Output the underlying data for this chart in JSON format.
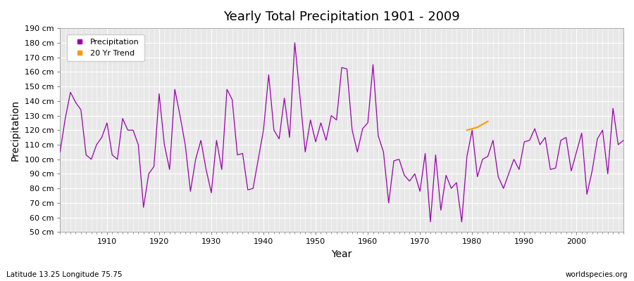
{
  "title": "Yearly Total Precipitation 1901 - 2009",
  "xlabel": "Year",
  "ylabel": "Precipitation",
  "subtitle": "Latitude 13.25 Longitude 75.75",
  "watermark": "worldspecies.org",
  "ylim": [
    50,
    190
  ],
  "xlim": [
    1901,
    2009
  ],
  "yticks": [
    50,
    60,
    70,
    80,
    90,
    100,
    110,
    120,
    130,
    140,
    150,
    160,
    170,
    180,
    190
  ],
  "ytick_labels": [
    "50 cm",
    "60 cm",
    "70 cm",
    "80 cm",
    "90 cm",
    "100 cm",
    "110 cm",
    "120 cm",
    "130 cm",
    "140 cm",
    "150 cm",
    "160 cm",
    "170 cm",
    "180 cm",
    "190 cm"
  ],
  "xticks": [
    1910,
    1920,
    1930,
    1940,
    1950,
    1960,
    1970,
    1980,
    1990,
    2000
  ],
  "precipitation_color": "#9900aa",
  "trend_color": "#ff9900",
  "fig_bg_color": "#ffffff",
  "plot_bg_color": "#e8e8e8",
  "grid_color": "#ffffff",
  "years": [
    1901,
    1902,
    1903,
    1904,
    1905,
    1906,
    1907,
    1908,
    1909,
    1910,
    1911,
    1912,
    1913,
    1914,
    1915,
    1916,
    1917,
    1918,
    1919,
    1920,
    1921,
    1922,
    1923,
    1924,
    1925,
    1926,
    1927,
    1928,
    1929,
    1930,
    1931,
    1932,
    1933,
    1934,
    1935,
    1936,
    1937,
    1938,
    1939,
    1940,
    1941,
    1942,
    1943,
    1944,
    1945,
    1946,
    1947,
    1948,
    1949,
    1950,
    1951,
    1952,
    1953,
    1954,
    1955,
    1956,
    1957,
    1958,
    1959,
    1960,
    1961,
    1962,
    1963,
    1964,
    1965,
    1966,
    1967,
    1968,
    1969,
    1970,
    1971,
    1972,
    1973,
    1974,
    1975,
    1976,
    1977,
    1978,
    1979,
    1980,
    1981,
    1982,
    1983,
    1984,
    1985,
    1986,
    1987,
    1988,
    1989,
    1990,
    1991,
    1992,
    1993,
    1994,
    1995,
    1996,
    1997,
    1998,
    1999,
    2000,
    2001,
    2002,
    2003,
    2004,
    2005,
    2006,
    2007,
    2008,
    2009
  ],
  "precip": [
    105,
    128,
    146,
    139,
    134,
    103,
    100,
    110,
    115,
    125,
    103,
    100,
    128,
    120,
    120,
    110,
    67,
    90,
    95,
    145,
    110,
    93,
    148,
    130,
    110,
    78,
    100,
    113,
    93,
    77,
    113,
    93,
    148,
    141,
    103,
    104,
    79,
    80,
    100,
    120,
    158,
    120,
    114,
    142,
    115,
    180,
    143,
    105,
    127,
    112,
    125,
    113,
    130,
    127,
    163,
    162,
    120,
    105,
    121,
    125,
    165,
    116,
    105,
    70,
    99,
    100,
    89,
    85,
    90,
    78,
    104,
    57,
    103,
    65,
    89,
    80,
    84,
    57,
    102,
    120,
    88,
    100,
    102,
    113,
    88,
    80,
    90,
    100,
    93,
    112,
    113,
    121,
    110,
    115,
    93,
    94,
    113,
    115,
    92,
    105,
    118,
    76,
    92,
    114,
    120,
    90,
    135,
    110,
    113
  ],
  "trend_years": [
    1979,
    1980,
    1981,
    1982,
    1983
  ],
  "trend_vals": [
    120,
    121,
    122,
    124,
    126
  ]
}
